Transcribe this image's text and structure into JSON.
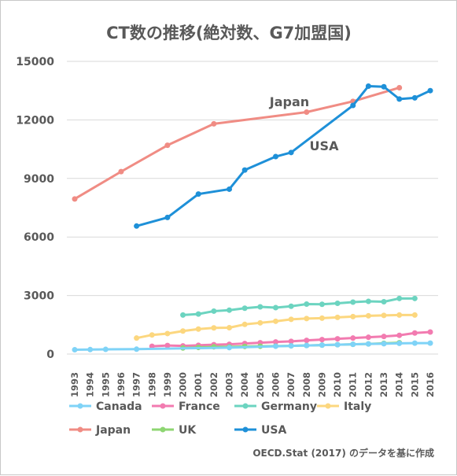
{
  "chart_data": {
    "type": "line",
    "title": "CT数の推移(絶対数、G7加盟国)",
    "x": [
      1993,
      1994,
      1995,
      1996,
      1997,
      1998,
      1999,
      2000,
      2001,
      2002,
      2003,
      2004,
      2005,
      2006,
      2007,
      2008,
      2009,
      2010,
      2011,
      2012,
      2013,
      2014,
      2015,
      2016
    ],
    "x_tick_labels": [
      "1993",
      "1994",
      "1995",
      "1996",
      "1997",
      "1998",
      "1999",
      "2000",
      "2001",
      "2002",
      "2003",
      "2004",
      "2005",
      "2006",
      "2007",
      "2008",
      "2009",
      "2010",
      "2011",
      "2012",
      "2013",
      "2014",
      "2015",
      "2016"
    ],
    "ylim": [
      0,
      15000
    ],
    "y_ticks": [
      0,
      3000,
      6000,
      9000,
      12000,
      15000
    ],
    "y_tick_labels": [
      "0",
      "3000",
      "6000",
      "9000",
      "12000",
      "15000"
    ],
    "grid": true,
    "legend_position": "bottom",
    "series": [
      {
        "name": "Canada",
        "color": "#7fd3f7",
        "x": [
          1993,
          1994,
          1995,
          1997,
          2003,
          2006,
          2007,
          2008,
          2009,
          2010,
          2011,
          2012,
          2013,
          2014,
          2015,
          2016
        ],
        "values": [
          220,
          230,
          240,
          250,
          330,
          400,
          420,
          440,
          460,
          480,
          500,
          520,
          530,
          550,
          560,
          560
        ]
      },
      {
        "name": "France",
        "color": "#f27bb0",
        "x": [
          1998,
          1999,
          2000,
          2001,
          2002,
          2003,
          2004,
          2005,
          2006,
          2007,
          2008,
          2009,
          2010,
          2011,
          2012,
          2013,
          2014,
          2015,
          2016
        ],
        "values": [
          400,
          440,
          420,
          450,
          480,
          500,
          540,
          580,
          620,
          650,
          700,
          740,
          780,
          820,
          860,
          900,
          960,
          1080,
          1130
        ]
      },
      {
        "name": "Germany",
        "color": "#6cd4c0",
        "x": [
          2000,
          2001,
          2002,
          2003,
          2004,
          2005,
          2006,
          2007,
          2008,
          2009,
          2010,
          2011,
          2012,
          2013,
          2014,
          2015
        ],
        "values": [
          2000,
          2050,
          2200,
          2250,
          2350,
          2420,
          2380,
          2450,
          2560,
          2550,
          2600,
          2660,
          2700,
          2680,
          2850,
          2850
        ]
      },
      {
        "name": "Italy",
        "color": "#fcd77f",
        "x": [
          1997,
          1998,
          1999,
          2000,
          2001,
          2002,
          2003,
          2004,
          2005,
          2006,
          2007,
          2008,
          2009,
          2010,
          2011,
          2012,
          2013,
          2014,
          2015
        ],
        "values": [
          820,
          980,
          1050,
          1180,
          1280,
          1340,
          1350,
          1520,
          1600,
          1680,
          1780,
          1820,
          1840,
          1880,
          1920,
          1960,
          1980,
          2000,
          2000
        ]
      },
      {
        "name": "Japan",
        "color": "#f08c84",
        "x": [
          1993,
          1996,
          1999,
          2002,
          2008,
          2011,
          2014
        ],
        "values": [
          7950,
          9350,
          10700,
          11800,
          12400,
          12950,
          13650
        ]
      },
      {
        "name": "UK",
        "color": "#8ed672",
        "x": [
          2000,
          2001,
          2002,
          2003,
          2004,
          2005,
          2006,
          2007,
          2008,
          2009,
          2010,
          2011,
          2012,
          2013,
          2014
        ],
        "values": [
          310,
          340,
          370,
          370,
          390,
          400,
          410,
          420,
          440,
          460,
          480,
          500,
          520,
          550,
          580
        ]
      },
      {
        "name": "USA",
        "color": "#1e90d8",
        "x": [
          1997,
          1999,
          2001,
          2003,
          2004,
          2006,
          2007,
          2011,
          2012,
          2013,
          2014,
          2015,
          2016
        ],
        "values": [
          6560,
          7000,
          8200,
          8450,
          9430,
          10120,
          10330,
          12740,
          13730,
          13700,
          13070,
          13130,
          13500
        ]
      }
    ],
    "annotations": [
      {
        "text": "Japan",
        "series": "Japan"
      },
      {
        "text": "USA",
        "series": "USA"
      }
    ],
    "source": "OECD.Stat (2017) のデータを基に作成"
  }
}
